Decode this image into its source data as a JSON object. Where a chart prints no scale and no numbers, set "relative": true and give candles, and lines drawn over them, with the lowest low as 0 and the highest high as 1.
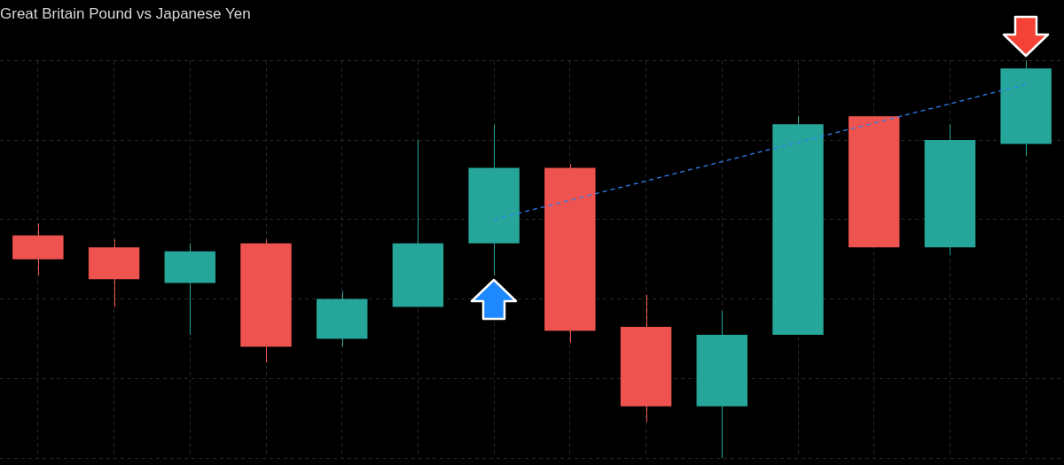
{
  "chart_data": {
    "type": "candlestick",
    "title": "Great Britain Pound vs Japanese Yen",
    "relative": true,
    "grid": true,
    "categories": [
      null,
      null,
      null,
      null,
      null,
      null,
      null,
      null,
      null,
      null,
      null,
      null,
      null,
      null
    ],
    "ohlc": [
      [
        0.56,
        0.59,
        0.46,
        0.5
      ],
      [
        0.53,
        0.55,
        0.38,
        0.45
      ],
      [
        0.44,
        0.54,
        0.31,
        0.52
      ],
      [
        0.54,
        0.55,
        0.24,
        0.28
      ],
      [
        0.3,
        0.42,
        0.28,
        0.4
      ],
      [
        0.38,
        0.8,
        0.38,
        0.54
      ],
      [
        0.54,
        0.84,
        0.46,
        0.73
      ],
      [
        0.73,
        0.74,
        0.29,
        0.32
      ],
      [
        0.33,
        0.41,
        0.09,
        0.13
      ],
      [
        0.13,
        0.37,
        0,
        0.31
      ],
      [
        0.31,
        0.86,
        0.31,
        0.84
      ],
      [
        0.86,
        0.86,
        0.53,
        0.53
      ],
      [
        0.53,
        0.84,
        0.51,
        0.8
      ],
      [
        0.79,
        1,
        0.76,
        0.98
      ]
    ],
    "colors": [
      "#ef5350",
      "#ef5350",
      "#26a69a",
      "#ef5350",
      "#26a69a",
      "#26a69a",
      "#26a69a",
      "#ef5350",
      "#ef5350",
      "#26a69a",
      "#26a69a",
      "#ef5350",
      "#26a69a",
      "#26a69a"
    ],
    "series": [
      {
        "type": "line",
        "color": "#2f80ed",
        "line_style": "dashed",
        "marker": "none",
        "values": [
          null,
          null,
          null,
          null,
          null,
          null,
          0.6,
          null,
          null,
          null,
          null,
          null,
          null,
          0.94
        ]
      }
    ]
  }
}
